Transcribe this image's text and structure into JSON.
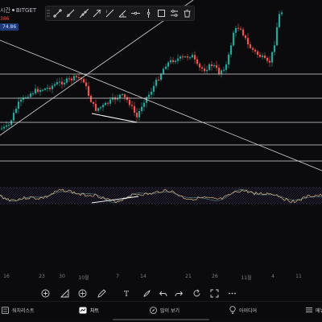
{
  "header": {
    "symbol_text": "시간",
    "exchange": "BITGET",
    "sub_value": "386",
    "price_tag": "74.86"
  },
  "toolbar": {
    "tools": [
      {
        "name": "trend-line-icon"
      },
      {
        "name": "ray-icon"
      },
      {
        "name": "extended-line-icon"
      },
      {
        "name": "arrow-line-icon"
      },
      {
        "name": "info-line-icon"
      },
      {
        "name": "angle-line-icon"
      },
      {
        "name": "horizontal-line-icon"
      },
      {
        "name": "vertical-line-icon"
      },
      {
        "name": "rectangle-icon"
      },
      {
        "name": "settings-icon"
      },
      {
        "name": "delete-icon"
      }
    ]
  },
  "x_axis": {
    "labels": [
      "16",
      "23",
      "30",
      "10월",
      "7",
      "14",
      "21",
      "26",
      "11월",
      "4",
      "11"
    ]
  },
  "drawing_tools": [
    "add-icon",
    "measure-icon",
    "price-range-icon",
    "drawing-tools-icon",
    "text-tool-icon",
    "undo-icon",
    "redo-icon",
    "reset-icon",
    "fullscreen-icon",
    "more-icon"
  ],
  "bottom_nav": {
    "watchlist": "워치리스트",
    "chart": "차트",
    "explore": "많이 보기",
    "ideas": "아이디어",
    "menu": "메뉴"
  },
  "colors": {
    "up": "#26a69a",
    "down": "#ef5350",
    "rsi": "#c3a77a",
    "accent": "#2962ff"
  }
}
